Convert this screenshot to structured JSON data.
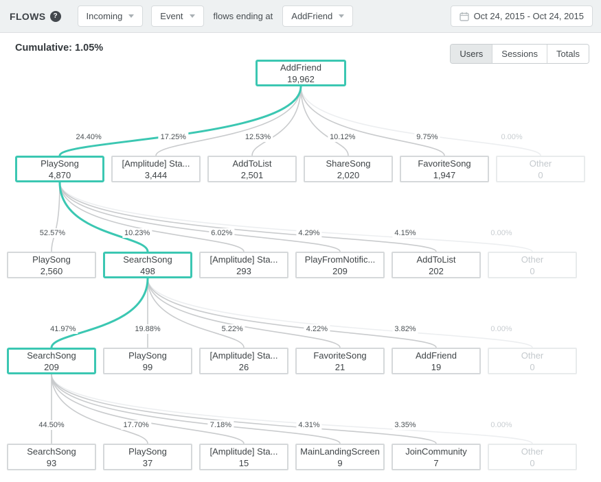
{
  "header": {
    "title": "FLOWS",
    "help": "?",
    "incoming_dropdown": "Incoming",
    "event_type_dropdown": "Event",
    "connector_text": "flows ending at",
    "end_event_dropdown": "AddFriend",
    "date_range": "Oct 24, 2015  -  Oct 24, 2015"
  },
  "toolbar": {
    "cumulative_label": "Cumulative:",
    "cumulative_value": "1.05%",
    "view_tabs": [
      {
        "label": "Users",
        "selected": true
      },
      {
        "label": "Sessions",
        "selected": false
      },
      {
        "label": "Totals",
        "selected": false
      }
    ]
  },
  "colors": {
    "accent": "#3bc7b2",
    "edge": "#c9cbcd",
    "edge_muted": "#eceef0"
  },
  "icons": {
    "calendar": "calendar-icon",
    "help": "question-mark-icon",
    "dropdown_caret": "chevron-down-icon"
  },
  "flow": {
    "root": {
      "name": "AddFriend",
      "value": "19,962",
      "highlight": true
    },
    "levels": [
      {
        "nodes": [
          {
            "pct": "24.40%",
            "name": "PlaySong",
            "value": "4,870",
            "highlight": true
          },
          {
            "pct": "17.25%",
            "name": "[Amplitude] Sta...",
            "value": "3,444"
          },
          {
            "pct": "12.53%",
            "name": "AddToList",
            "value": "2,501"
          },
          {
            "pct": "10.12%",
            "name": "ShareSong",
            "value": "2,020"
          },
          {
            "pct": "9.75%",
            "name": "FavoriteSong",
            "value": "1,947"
          },
          {
            "pct": "0.00%",
            "name": "Other",
            "value": "0",
            "muted": true
          }
        ]
      },
      {
        "nodes": [
          {
            "pct": "52.57%",
            "name": "PlaySong",
            "value": "2,560"
          },
          {
            "pct": "10.23%",
            "name": "SearchSong",
            "value": "498",
            "highlight": true
          },
          {
            "pct": "6.02%",
            "name": "[Amplitude] Sta...",
            "value": "293"
          },
          {
            "pct": "4.29%",
            "name": "PlayFromNotific...",
            "value": "209"
          },
          {
            "pct": "4.15%",
            "name": "AddToList",
            "value": "202"
          },
          {
            "pct": "0.00%",
            "name": "Other",
            "value": "0",
            "muted": true
          }
        ]
      },
      {
        "nodes": [
          {
            "pct": "41.97%",
            "name": "SearchSong",
            "value": "209",
            "highlight": true
          },
          {
            "pct": "19.88%",
            "name": "PlaySong",
            "value": "99"
          },
          {
            "pct": "5.22%",
            "name": "[Amplitude] Sta...",
            "value": "26"
          },
          {
            "pct": "4.22%",
            "name": "FavoriteSong",
            "value": "21"
          },
          {
            "pct": "3.82%",
            "name": "AddFriend",
            "value": "19"
          },
          {
            "pct": "0.00%",
            "name": "Other",
            "value": "0",
            "muted": true
          }
        ]
      },
      {
        "nodes": [
          {
            "pct": "44.50%",
            "name": "SearchSong",
            "value": "93"
          },
          {
            "pct": "17.70%",
            "name": "PlaySong",
            "value": "37"
          },
          {
            "pct": "7.18%",
            "name": "[Amplitude] Sta...",
            "value": "15"
          },
          {
            "pct": "4.31%",
            "name": "MainLandingScreen",
            "value": "9"
          },
          {
            "pct": "3.35%",
            "name": "JoinCommunity",
            "value": "7"
          },
          {
            "pct": "0.00%",
            "name": "Other",
            "value": "0",
            "muted": true
          }
        ]
      }
    ]
  }
}
